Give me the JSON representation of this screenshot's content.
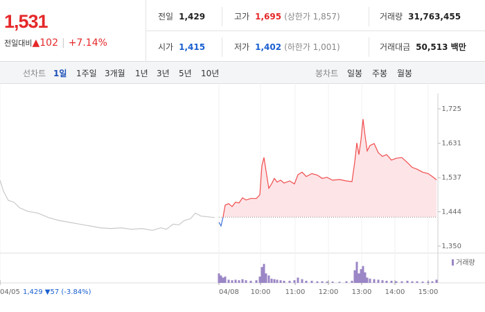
{
  "quote": {
    "price": "1,531",
    "change_label": "전일대비",
    "change": "▲102",
    "change_pct": "+7.14%"
  },
  "stats": [
    {
      "label": "전일",
      "value": "1,429"
    },
    {
      "label": "고가",
      "value": "1,695",
      "note": "(상한가 1,857)"
    },
    {
      "label": "거래량",
      "value": "31,763,455"
    },
    {
      "label": "시가",
      "value": "1,415"
    },
    {
      "label": "저가",
      "value": "1,402",
      "note": "(하한가 1,001)"
    },
    {
      "label": "거래대금",
      "value": "50,513 백만"
    }
  ],
  "line_tabs": {
    "label": "선차트",
    "items": [
      "1일",
      "1주일",
      "3개월",
      "1년",
      "3년",
      "5년",
      "10년"
    ]
  },
  "candle_tabs": {
    "label": "봉차트",
    "items": [
      "일봉",
      "주봉",
      "월봉"
    ]
  },
  "chart_data": {
    "type": "line",
    "xlim": [
      0,
      63.2
    ],
    "ylim": [
      1331,
      1795
    ],
    "yticks": [
      {
        "value": 1350,
        "label": "1,350"
      },
      {
        "value": 1444,
        "label": "1,444"
      },
      {
        "value": 1537,
        "label": "1,537"
      },
      {
        "value": 1631,
        "label": "1,631"
      },
      {
        "value": 1725,
        "label": "1,725"
      }
    ],
    "xticks": [
      {
        "value": 0,
        "label": "04/05"
      },
      {
        "value": 31.6,
        "label": "04/08"
      },
      {
        "value": 37.6,
        "label": "10:00"
      },
      {
        "value": 42.6,
        "label": "11:00"
      },
      {
        "value": 47.4,
        "label": "12:00"
      },
      {
        "value": 52.2,
        "label": "13:00"
      },
      {
        "value": 57.0,
        "label": "14:00"
      },
      {
        "value": 61.8,
        "label": "15:00"
      }
    ],
    "baseline": 1429,
    "prev_day_note": "1,429 ▼57 (-3.84%)",
    "series": [
      {
        "color": "#c8c8c8",
        "x": [
          0,
          0.5,
          1.2,
          2.0,
          2.8,
          4.0,
          5.5,
          7.0,
          8.5,
          10.0,
          11.5,
          13.0,
          14.5,
          16.0,
          17.5,
          19.0,
          20.5,
          22.0,
          23.2,
          24.0,
          25.0,
          25.8,
          26.6,
          27.5,
          28.2,
          29.0,
          30.0,
          31.0
        ],
        "values": [
          1530,
          1500,
          1475,
          1470,
          1455,
          1445,
          1440,
          1428,
          1420,
          1415,
          1410,
          1405,
          1400,
          1398,
          1400,
          1396,
          1398,
          1393,
          1400,
          1396,
          1410,
          1408,
          1420,
          1425,
          1440,
          1432,
          1430,
          1428
        ]
      },
      {
        "color": "#f04b4b",
        "down_color": "#3a6fd8",
        "fill": "#fde4e7",
        "x": [
          31.6,
          31.9,
          32.2,
          32.5,
          33.0,
          33.5,
          34.0,
          34.5,
          35.0,
          35.5,
          36.2,
          37.0,
          37.5,
          37.8,
          38.1,
          38.4,
          38.8,
          39.2,
          39.6,
          40.0,
          40.5,
          41.0,
          41.8,
          42.5,
          43.0,
          43.6,
          44.2,
          45.0,
          45.8,
          46.5,
          47.2,
          48.0,
          49.0,
          50.0,
          50.8,
          51.2,
          51.5,
          51.8,
          52.1,
          52.4,
          52.7,
          53.0,
          53.4,
          54.0,
          54.6,
          55.2,
          55.8,
          56.5,
          57.2,
          58.0,
          58.8,
          59.5,
          60.2,
          61.0,
          61.8,
          62.4,
          63.0
        ],
        "values": [
          1415,
          1405,
          1430,
          1462,
          1466,
          1458,
          1470,
          1468,
          1482,
          1476,
          1480,
          1480,
          1490,
          1570,
          1592,
          1555,
          1508,
          1520,
          1535,
          1525,
          1530,
          1522,
          1528,
          1520,
          1545,
          1552,
          1540,
          1548,
          1544,
          1535,
          1538,
          1530,
          1532,
          1528,
          1526,
          1580,
          1632,
          1600,
          1640,
          1697,
          1650,
          1610,
          1625,
          1630,
          1605,
          1595,
          1600,
          1585,
          1590,
          1592,
          1578,
          1565,
          1560,
          1552,
          1548,
          1540,
          1531
        ]
      }
    ],
    "volume": {
      "name": "거래량",
      "color": "#9b86c6",
      "vlim": [
        0,
        2500000
      ],
      "x": [
        31.6,
        31.9,
        32.2,
        32.5,
        33.0,
        33.5,
        34.0,
        34.5,
        35.0,
        35.5,
        36.2,
        37.0,
        37.5,
        37.8,
        38.1,
        38.4,
        38.8,
        39.2,
        39.6,
        40.0,
        40.5,
        41.0,
        41.8,
        42.5,
        43.0,
        43.6,
        44.2,
        45.0,
        45.8,
        46.5,
        47.2,
        48.0,
        49.0,
        50.0,
        50.8,
        51.2,
        51.5,
        51.8,
        52.1,
        52.4,
        52.7,
        53.0,
        53.4,
        54.0,
        54.6,
        55.2,
        55.8,
        56.5,
        57.2,
        58.0,
        58.8,
        59.5,
        60.2,
        61.0,
        61.8,
        62.4,
        63.0
      ],
      "values": [
        900000,
        700000,
        500000,
        600000,
        300000,
        250000,
        300000,
        250000,
        350000,
        250000,
        200000,
        250000,
        600000,
        1500000,
        1800000,
        900000,
        700000,
        400000,
        350000,
        300000,
        250000,
        200000,
        200000,
        250000,
        500000,
        350000,
        200000,
        200000,
        150000,
        150000,
        120000,
        120000,
        100000,
        150000,
        200000,
        1200000,
        2000000,
        900000,
        1300000,
        1600000,
        1000000,
        500000,
        400000,
        350000,
        300000,
        250000,
        200000,
        200000,
        150000,
        150000,
        200000,
        150000,
        150000,
        120000,
        120000,
        150000,
        300000
      ]
    }
  }
}
